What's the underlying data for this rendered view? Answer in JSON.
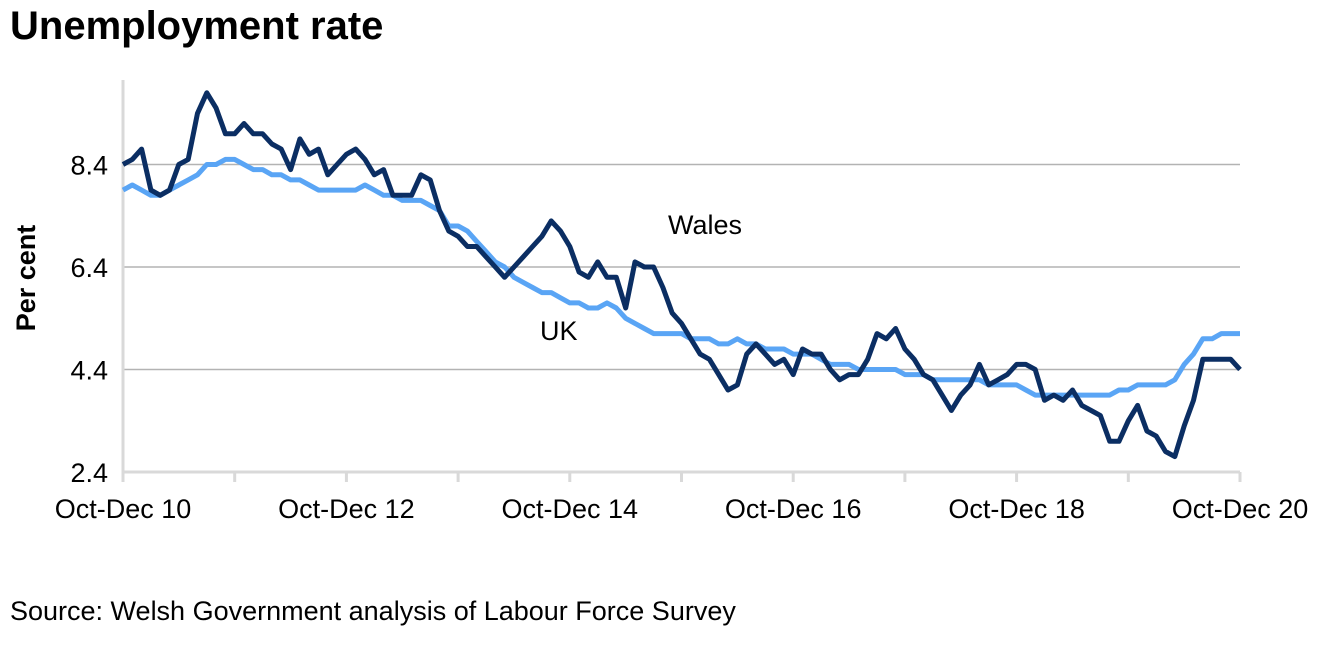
{
  "chart_data": {
    "type": "line",
    "title": "Unemployment rate",
    "xlabel": "",
    "ylabel": "Per cent",
    "ylim": [
      2.4,
      10.0
    ],
    "yticks": [
      "2.4",
      "4.4",
      "6.4",
      "8.4"
    ],
    "ytick_values": [
      2.4,
      4.4,
      6.4,
      8.4
    ],
    "xtick_labels": [
      "Oct-Dec 10",
      "Oct-Dec 12",
      "Oct-Dec 14",
      "Oct-Dec 16",
      "Oct-Dec 18",
      "Oct-Dec 20"
    ],
    "n_points": 121,
    "points_per_label": 24,
    "grid": "horizontal",
    "legend": "inline-labels",
    "series": [
      {
        "name": "Wales",
        "color": "#0b2e63",
        "values": [
          8.4,
          8.5,
          8.7,
          7.9,
          7.8,
          7.9,
          8.4,
          8.5,
          9.4,
          9.8,
          9.5,
          9.0,
          9.0,
          9.2,
          9.0,
          9.0,
          8.8,
          8.7,
          8.3,
          8.9,
          8.6,
          8.7,
          8.2,
          8.4,
          8.6,
          8.7,
          8.5,
          8.2,
          8.3,
          7.8,
          7.8,
          7.8,
          8.2,
          8.1,
          7.5,
          7.1,
          7.0,
          6.8,
          6.8,
          6.6,
          6.4,
          6.2,
          6.4,
          6.6,
          6.8,
          7.0,
          7.3,
          7.1,
          6.8,
          6.3,
          6.2,
          6.5,
          6.2,
          6.2,
          5.6,
          6.5,
          6.4,
          6.4,
          6.0,
          5.5,
          5.3,
          5.0,
          4.7,
          4.6,
          4.3,
          4.0,
          4.1,
          4.7,
          4.9,
          4.7,
          4.5,
          4.6,
          4.3,
          4.8,
          4.7,
          4.7,
          4.4,
          4.2,
          4.3,
          4.3,
          4.6,
          5.1,
          5.0,
          5.2,
          4.8,
          4.6,
          4.3,
          4.2,
          3.9,
          3.6,
          3.9,
          4.1,
          4.5,
          4.1,
          4.2,
          4.3,
          4.5,
          4.5,
          4.4,
          3.8,
          3.9,
          3.8,
          4.0,
          3.7,
          3.6,
          3.5,
          3.0,
          3.0,
          3.4,
          3.7,
          3.2,
          3.1,
          2.8,
          2.7,
          3.3,
          3.8,
          4.6,
          4.6,
          4.6,
          4.6,
          4.4
        ]
      },
      {
        "name": "UK",
        "color": "#5aa5f5",
        "values": [
          7.9,
          8.0,
          7.9,
          7.8,
          7.8,
          7.9,
          8.0,
          8.1,
          8.2,
          8.4,
          8.4,
          8.5,
          8.5,
          8.4,
          8.3,
          8.3,
          8.2,
          8.2,
          8.1,
          8.1,
          8.0,
          7.9,
          7.9,
          7.9,
          7.9,
          7.9,
          8.0,
          7.9,
          7.8,
          7.8,
          7.7,
          7.7,
          7.7,
          7.6,
          7.5,
          7.2,
          7.2,
          7.1,
          6.9,
          6.7,
          6.5,
          6.4,
          6.2,
          6.1,
          6.0,
          5.9,
          5.9,
          5.8,
          5.7,
          5.7,
          5.6,
          5.6,
          5.7,
          5.6,
          5.4,
          5.3,
          5.2,
          5.1,
          5.1,
          5.1,
          5.1,
          5.0,
          5.0,
          5.0,
          4.9,
          4.9,
          5.0,
          4.9,
          4.9,
          4.8,
          4.8,
          4.8,
          4.7,
          4.7,
          4.7,
          4.6,
          4.5,
          4.5,
          4.5,
          4.4,
          4.4,
          4.4,
          4.4,
          4.4,
          4.3,
          4.3,
          4.3,
          4.2,
          4.2,
          4.2,
          4.2,
          4.2,
          4.2,
          4.1,
          4.1,
          4.1,
          4.1,
          4.0,
          3.9,
          3.9,
          3.9,
          3.9,
          3.9,
          3.9,
          3.9,
          3.9,
          3.9,
          4.0,
          4.0,
          4.1,
          4.1,
          4.1,
          4.1,
          4.2,
          4.5,
          4.7,
          5.0,
          5.0,
          5.1,
          5.1,
          5.1
        ]
      }
    ],
    "annotations": [
      {
        "text": "Wales",
        "series": "Wales"
      },
      {
        "text": "UK",
        "series": "UK"
      }
    ]
  },
  "page": {
    "title": "Unemployment rate",
    "source": "Source: Welsh Government analysis of Labour Force Survey"
  }
}
